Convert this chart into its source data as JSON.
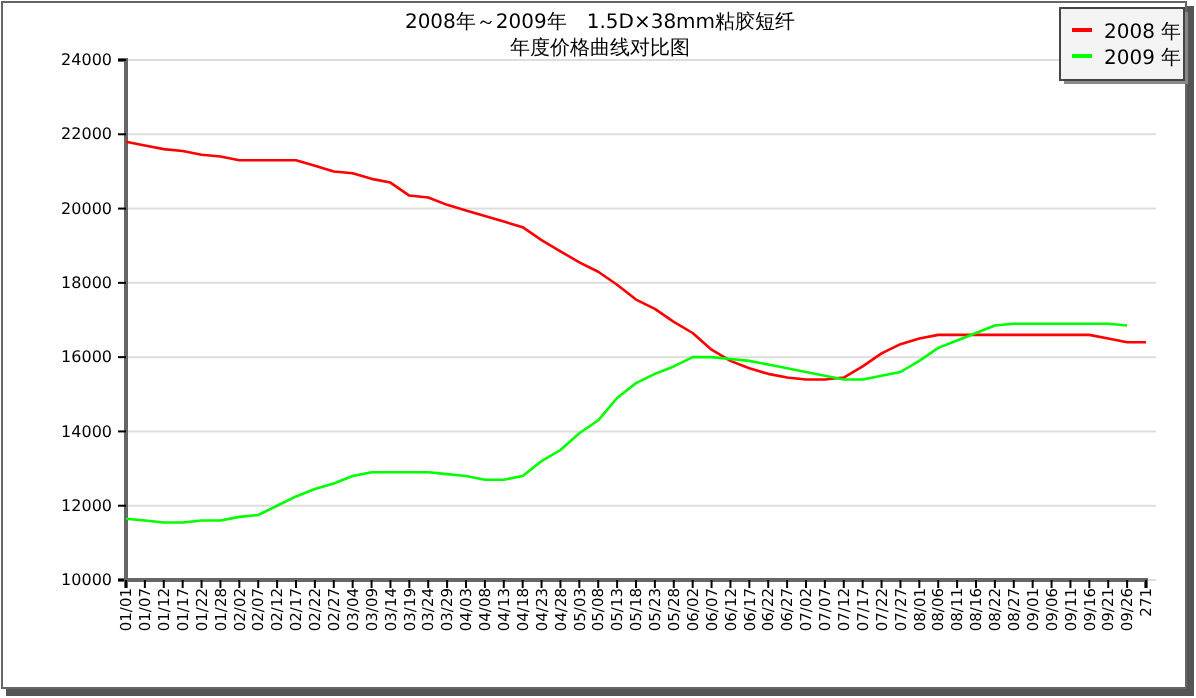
{
  "chart_data": {
    "type": "line",
    "title": "2008年～2009年　1.5D×38mm粘胶短纤",
    "subtitle": "年度价格曲线对比图",
    "categories": [
      "01/01",
      "01/07",
      "01/12",
      "01/17",
      "01/22",
      "01/28",
      "02/02",
      "02/07",
      "02/12",
      "02/17",
      "02/22",
      "02/27",
      "03/04",
      "03/09",
      "03/14",
      "03/19",
      "03/24",
      "03/29",
      "04/03",
      "04/08",
      "04/13",
      "04/18",
      "04/23",
      "04/28",
      "05/03",
      "05/08",
      "05/13",
      "05/18",
      "05/23",
      "05/28",
      "06/02",
      "06/07",
      "06/12",
      "06/17",
      "06/22",
      "06/27",
      "07/02",
      "07/07",
      "07/12",
      "07/17",
      "07/22",
      "07/27",
      "08/01",
      "08/06",
      "08/11",
      "08/16",
      "08/22",
      "08/27",
      "09/01",
      "09/06",
      "09/11",
      "09/16",
      "09/21",
      "09/26",
      "271"
    ],
    "series": [
      {
        "name": "2008 年",
        "color": "#ff0000",
        "values": [
          21800,
          21700,
          21600,
          21550,
          21450,
          21400,
          21300,
          21300,
          21300,
          21300,
          21150,
          21000,
          20950,
          20800,
          20700,
          20350,
          20300,
          20100,
          19950,
          19800,
          19650,
          19500,
          19150,
          18850,
          18550,
          18300,
          17950,
          17550,
          17300,
          16950,
          16650,
          16200,
          15900,
          15700,
          15550,
          15450,
          15400,
          15400,
          15450,
          15750,
          16100,
          16350,
          16500,
          16600,
          16600,
          16600,
          16600,
          16600,
          16600,
          16600,
          16600,
          16600,
          16500,
          16400,
          16400
        ]
      },
      {
        "name": "2009 年",
        "color": "#00ff00",
        "values": [
          11650,
          11600,
          11550,
          11550,
          11600,
          11600,
          11700,
          11750,
          12000,
          12250,
          12450,
          12600,
          12800,
          12900,
          12900,
          12900,
          12900,
          12850,
          12800,
          12700,
          12700,
          12800,
          13200,
          13500,
          13950,
          14300,
          14900,
          15300,
          15550,
          15750,
          16000,
          16000,
          15950,
          15900,
          15800,
          15700,
          15600,
          15500,
          15400,
          15400,
          15500,
          15600,
          15900,
          16250,
          16450,
          16650,
          16850,
          16900,
          16900,
          16900,
          16900,
          16900,
          16900,
          16850,
          null
        ]
      }
    ],
    "ylim": [
      10000,
      24000
    ],
    "yticks": [
      10000,
      12000,
      14000,
      16000,
      18000,
      20000,
      22000,
      24000
    ],
    "grid": "y",
    "legend": "top right",
    "marker": "none",
    "line_style": "solid"
  }
}
